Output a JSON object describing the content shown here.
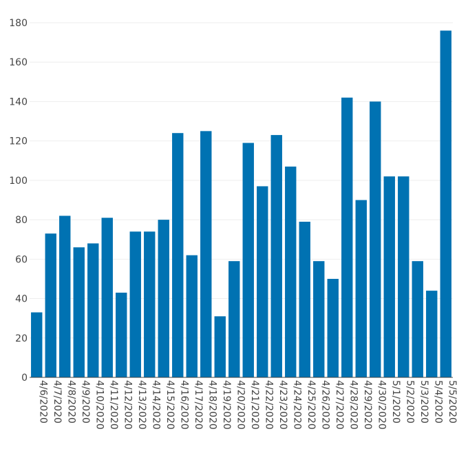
{
  "chart_data": {
    "type": "bar",
    "title": "",
    "xlabel": "",
    "ylabel": "",
    "categories": [
      "4/6/2020",
      "4/7/2020",
      "4/8/2020",
      "4/9/2020",
      "4/10/2020",
      "4/11/2020",
      "4/12/2020",
      "4/13/2020",
      "4/14/2020",
      "4/15/2020",
      "4/16/2020",
      "4/17/2020",
      "4/18/2020",
      "4/19/2020",
      "4/20/2020",
      "4/21/2020",
      "4/22/2020",
      "4/23/2020",
      "4/24/2020",
      "4/25/2020",
      "4/26/2020",
      "4/27/2020",
      "4/28/2020",
      "4/29/2020",
      "4/30/2020",
      "5/1/2020",
      "5/2/2020",
      "5/3/2020",
      "5/4/2020",
      "5/5/2020"
    ],
    "values": [
      33,
      73,
      82,
      66,
      68,
      81,
      43,
      74,
      74,
      80,
      124,
      62,
      125,
      31,
      59,
      119,
      97,
      123,
      107,
      79,
      59,
      50,
      142,
      90,
      140,
      102,
      102,
      59,
      44,
      176
    ],
    "ylim": [
      0,
      180
    ],
    "yticks": [
      0,
      20,
      40,
      60,
      80,
      100,
      120,
      140,
      160,
      180
    ],
    "grid": true,
    "legend": "none",
    "bar_color": "#0072b2",
    "grid_color": "#eeeeee",
    "axis_color": "#444444"
  }
}
